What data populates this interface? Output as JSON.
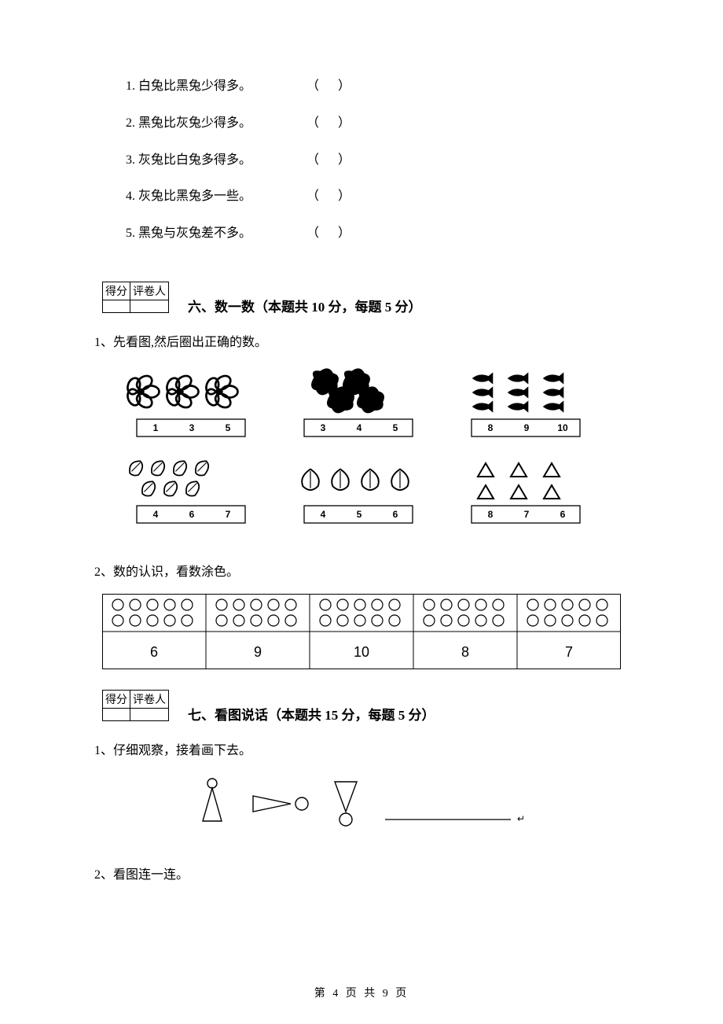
{
  "statements": [
    {
      "num": "1.",
      "text": "白兔比黑兔少得多。"
    },
    {
      "num": "2.",
      "text": "黑兔比灰兔少得多。"
    },
    {
      "num": "3.",
      "text": "灰兔比白兔多得多。"
    },
    {
      "num": "4.",
      "text": "灰兔比黑兔多一些。"
    },
    {
      "num": "5.",
      "text": "黑兔与灰兔差不多。"
    }
  ],
  "paren": "（   ）",
  "scoreBox": {
    "col1": "得分",
    "col2": "评卷人"
  },
  "section6": {
    "title": "六、数一数（本题共 10 分，每题 5 分）",
    "q1": {
      "label": "1、先看图,然后圈出正确的数。",
      "cells": [
        {
          "choices": [
            "1",
            "3",
            "5"
          ],
          "icon": "flower3"
        },
        {
          "choices": [
            "3",
            "4",
            "5"
          ],
          "icon": "blob4"
        },
        {
          "choices": [
            "8",
            "9",
            "10"
          ],
          "icon": "fish9"
        },
        {
          "choices": [
            "4",
            "6",
            "7"
          ],
          "icon": "leaf7"
        },
        {
          "choices": [
            "4",
            "5",
            "6"
          ],
          "icon": "peach4"
        },
        {
          "choices": [
            "8",
            "7",
            "6"
          ],
          "icon": "tri6"
        }
      ],
      "choice_fontsize": 12,
      "box_border": "#000000"
    },
    "q2": {
      "label": "2、数的认识，看数涂色。",
      "circles_per_cell": 10,
      "cols": 5,
      "values": [
        "6",
        "9",
        "10",
        "8",
        "7"
      ],
      "border": "#000000",
      "value_fontsize": 18
    }
  },
  "section7": {
    "title": "七、看图说话（本题共 15 分，每题 5 分）",
    "q1": {
      "label": "1、仔细观察，接着画下去。"
    },
    "q2": {
      "label": "2、看图连一连。"
    }
  },
  "footer": "第 4 页 共 9 页"
}
